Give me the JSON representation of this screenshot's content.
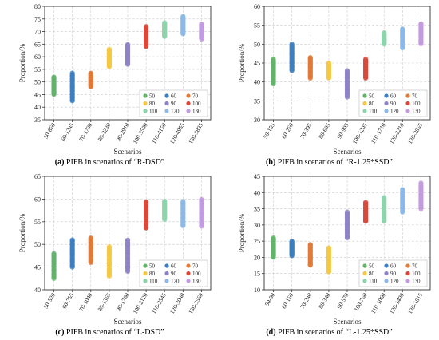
{
  "legend_labels": [
    "50",
    "60",
    "70",
    "80",
    "90",
    "100",
    "110",
    "120",
    "130"
  ],
  "legend_colors": [
    "#63b36b",
    "#3c7ebf",
    "#e07b39",
    "#f5c842",
    "#8f82c6",
    "#d9483b",
    "#8fd3ab",
    "#8cb9e6",
    "#c39be0"
  ],
  "chart_data": [
    {
      "type": "scatter",
      "letter": "(a)",
      "caption": "PIFB in scenarios of “R-DSD”",
      "xlabel": "Scenarios",
      "ylabel": "Proportion/%",
      "ylim": [
        35,
        80
      ],
      "yticks": [
        35,
        40,
        45,
        50,
        55,
        60,
        65,
        70,
        75,
        80
      ],
      "grid": true,
      "legend_position": "bottom-right",
      "categories": [
        "50-860",
        "60-1245",
        "70-1700",
        "80-2230",
        "90-2910",
        "100-3590",
        "110-4150",
        "120-4955",
        "130-5835"
      ],
      "ranges": [
        [
          45,
          52
        ],
        [
          42.5,
          53.5
        ],
        [
          48,
          53.5
        ],
        [
          56,
          63
        ],
        [
          57,
          65
        ],
        [
          64,
          72
        ],
        [
          68,
          73.5
        ],
        [
          69,
          76
        ],
        [
          67,
          73
        ]
      ]
    },
    {
      "type": "scatter",
      "letter": "(b)",
      "caption": "PIFB in scenarios of “R-1.25*SSD”",
      "xlabel": "Scenarios",
      "ylabel": "Proportion/%",
      "ylim": [
        30,
        60
      ],
      "yticks": [
        30,
        35,
        40,
        45,
        50,
        55,
        60
      ],
      "grid": true,
      "legend_position": "bottom-right",
      "categories": [
        "50-155",
        "60-260",
        "70-395",
        "80-605",
        "90-905",
        "100-1205",
        "110-1710",
        "120-2210",
        "130-2855"
      ],
      "ranges": [
        [
          39.5,
          46
        ],
        [
          43,
          50
        ],
        [
          41,
          46.5
        ],
        [
          41,
          45
        ],
        [
          36,
          43
        ],
        [
          41,
          46
        ],
        [
          50,
          53
        ],
        [
          49,
          54
        ],
        [
          50,
          55.5
        ]
      ]
    },
    {
      "type": "scatter",
      "letter": "(c)",
      "caption": "PIFB in scenarios of “L-DSD”",
      "xlabel": "Scenarios",
      "ylabel": "Proportion/%",
      "ylim": [
        40,
        65
      ],
      "yticks": [
        40,
        45,
        50,
        55,
        60,
        65
      ],
      "grid": true,
      "legend_position": "bottom-right",
      "categories": [
        "50-520",
        "60-755",
        "70-1040",
        "80-1365",
        "90-1760",
        "100-2120",
        "110-2545",
        "120-3040",
        "130-3560"
      ],
      "ranges": [
        [
          42.5,
          48
        ],
        [
          45,
          51
        ],
        [
          46,
          51.5
        ],
        [
          43,
          49.5
        ],
        [
          44,
          51
        ],
        [
          53.5,
          59.5
        ],
        [
          55.5,
          59.5
        ],
        [
          54,
          59.5
        ],
        [
          54,
          60
        ]
      ]
    },
    {
      "type": "scatter",
      "letter": "(d)",
      "caption": "PIFB in scenarios of “L-1.25*SSD”",
      "xlabel": "Scenarios",
      "ylabel": "Proportion/%",
      "ylim": [
        10,
        45
      ],
      "yticks": [
        10,
        15,
        20,
        25,
        30,
        35,
        40,
        45
      ],
      "grid": true,
      "legend_position": "bottom-right",
      "categories": [
        "50-90",
        "60-160",
        "70-240",
        "80-340",
        "90-570",
        "100-760",
        "110-1060",
        "120-1400",
        "130-1815"
      ],
      "ranges": [
        [
          20,
          26
        ],
        [
          20.5,
          25
        ],
        [
          17.5,
          24
        ],
        [
          15.5,
          23
        ],
        [
          26,
          34
        ],
        [
          31,
          37
        ],
        [
          31,
          38.5
        ],
        [
          34,
          41
        ],
        [
          35,
          43
        ]
      ]
    }
  ]
}
